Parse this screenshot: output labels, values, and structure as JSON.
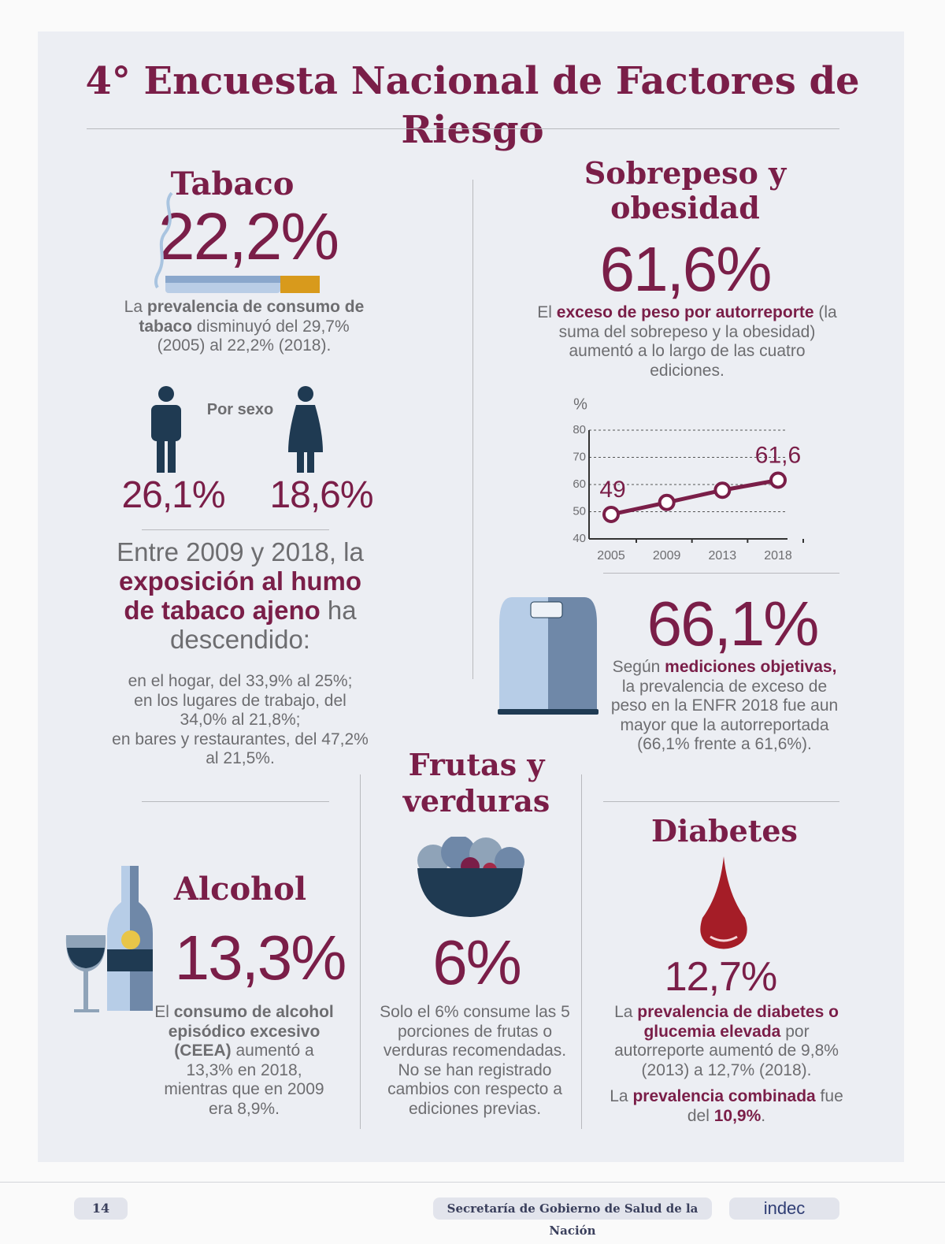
{
  "title": "4° Encuesta Nacional de Factores de Riesgo",
  "tabaco": {
    "heading": "Tabaco",
    "value": "22,2%",
    "text": [
      "La ",
      "prevalencia de consumo de tabaco",
      " disminuyó del 29,7% (2005) al 22,2% (2018)."
    ],
    "by_sex_label": "Por sexo",
    "male": "26,1%",
    "female": "18,6%",
    "exposure": [
      "Entre 2009 y 2018, la ",
      "exposición al humo de tabaco ajeno",
      " ha descendido:"
    ],
    "exposure_details": [
      "en el hogar, del 33,9% al 25%;",
      "en los lugares de trabajo, del 34,0% al 21,8%;",
      "en bares y restaurantes, del 47,2% al 21,5%."
    ]
  },
  "sobrepeso": {
    "heading": "Sobrepeso y obesidad",
    "value": "61,6%",
    "text": [
      "El ",
      "exceso de peso por autorreporte",
      " (la suma del sobrepeso y la obesidad) aumentó a lo largo de las cuatro ediciones."
    ],
    "measured_value": "66,1%",
    "measured_text": [
      "Según ",
      "mediciones objetivas,",
      " la prevalencia de exceso de peso en la ENFR 2018 fue aun mayor que la autorreportada (66,1% frente a 61,6%)."
    ]
  },
  "chart_data": {
    "type": "line",
    "y_label": "%",
    "categories": [
      "2005",
      "2009",
      "2013",
      "2018"
    ],
    "values": [
      49,
      53.4,
      57.9,
      61.6
    ],
    "value_labels": [
      "49",
      null,
      null,
      "61,6"
    ],
    "color": "#7a1e48",
    "ylim": [
      40,
      80
    ],
    "yticks": [
      40,
      50,
      60,
      70,
      80
    ],
    "grid": true
  },
  "alcohol": {
    "heading": "Alcohol",
    "value": "13,3%",
    "text": [
      "El ",
      "consumo de alcohol episódico excesivo (CEEA)",
      " aumentó a 13,3% en 2018, mientras que en 2009 era 8,9%."
    ]
  },
  "frutas": {
    "heading": "Frutas y verduras",
    "value": "6%",
    "text": "Solo el 6% consume las 5 porciones de frutas o verduras recomendadas. No se han registrado cambios con respecto a ediciones previas."
  },
  "diabetes": {
    "heading": "Diabetes",
    "value": "12,7%",
    "text": [
      "La ",
      "prevalencia de diabetes o glucemia elevada",
      " por autorreporte aumentó de 9,8% (2013) a 12,7% (2018)."
    ],
    "combined": [
      "La ",
      "prevalencia combinada",
      " fue del ",
      "10,9%",
      "."
    ]
  },
  "footer": {
    "page": "14",
    "source": "Secretaría de Gobierno de Salud de la Nación",
    "brand": "indec"
  }
}
